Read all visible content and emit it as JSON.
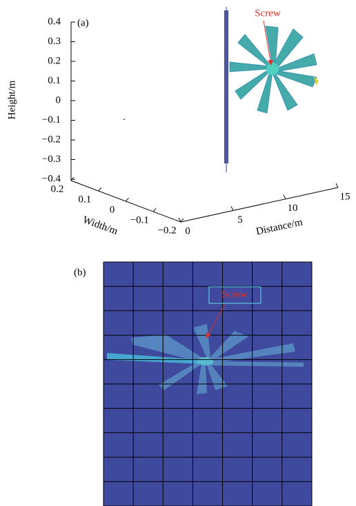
{
  "chart_data": [
    {
      "type": "scatter3d",
      "panel_label": "(a)",
      "annotation": "Screw",
      "zlabel": "Height/m",
      "ylabel": "Width/m",
      "xlabel": "Distance/m",
      "xlim": [
        0,
        15
      ],
      "xticks": [
        0,
        5,
        10,
        15
      ],
      "ylim": [
        -0.2,
        0.2
      ],
      "yticks": [
        0.2,
        0.1,
        0,
        {
          "value": -0.1,
          "label": "−0.1"
        },
        {
          "value": -0.2,
          "label": "−0.2"
        }
      ],
      "zlim": [
        -0.4,
        0.4
      ],
      "zticks": [
        0.4,
        0.3,
        0.2,
        0.1,
        0,
        {
          "value": -0.1,
          "label": "−0.1"
        },
        {
          "value": -0.2,
          "label": "−0.2"
        },
        {
          "value": -0.3,
          "label": "−0.3"
        },
        {
          "value": -0.4,
          "label": "−0.4"
        }
      ]
    },
    {
      "type": "image",
      "panel_label": "(b)",
      "annotation": "Screw",
      "grid": true
    }
  ]
}
